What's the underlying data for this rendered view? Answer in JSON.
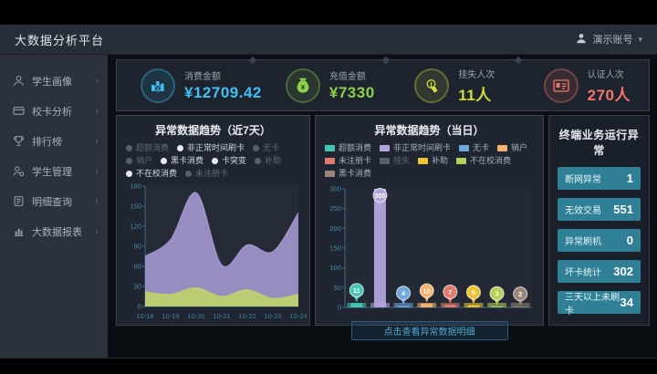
{
  "header": {
    "title": "大数据分析平台",
    "user_name": "演示账号",
    "caret": "▾"
  },
  "sidebar": {
    "items": [
      {
        "label": "学生画像",
        "icon": "student-icon"
      },
      {
        "label": "校卡分析",
        "icon": "card-icon"
      },
      {
        "label": "排行榜",
        "icon": "trophy-icon"
      },
      {
        "label": "学生管理",
        "icon": "manage-icon"
      },
      {
        "label": "明细查询",
        "icon": "search-doc-icon"
      },
      {
        "label": "大数据报表",
        "icon": "report-icon"
      }
    ]
  },
  "kpis": [
    {
      "label": "消费金额",
      "value": "¥12709.42",
      "color": "#3fc1f5",
      "icon": "coins-icon"
    },
    {
      "label": "充值金额",
      "value": "¥7330",
      "color": "#8ed04a",
      "icon": "moneybag-icon"
    },
    {
      "label": "挂失人次",
      "value": "11人",
      "color": "#d3dc3a",
      "icon": "touch-icon"
    },
    {
      "label": "认证人次",
      "value": "270人",
      "color": "#f2766d",
      "icon": "idcard-icon"
    }
  ],
  "left_chart": {
    "title": "异常数据趋势（近7天）",
    "legend": [
      {
        "label": "超额消费",
        "active": false
      },
      {
        "label": "非正常时间刷卡",
        "active": true
      },
      {
        "label": "无卡",
        "active": false
      },
      {
        "label": "销户",
        "active": false
      },
      {
        "label": "黑卡消费",
        "active": true
      },
      {
        "label": "卡突变",
        "active": true
      },
      {
        "label": "补助",
        "active": false
      },
      {
        "label": "不在校消费",
        "active": true
      },
      {
        "label": "未注册卡",
        "active": false
      }
    ]
  },
  "right_chart": {
    "title": "异常数据趋势（当日）",
    "footer_link": "点击查看异常数据明细",
    "legend": [
      {
        "label": "超额消费",
        "color": "#45c5b5",
        "active": true
      },
      {
        "label": "非正常时间刷卡",
        "color": "#b3a5dc",
        "active": true
      },
      {
        "label": "无卡",
        "color": "#6fa8dc",
        "active": true
      },
      {
        "label": "销户",
        "color": "#f6b26b",
        "active": true
      },
      {
        "label": "未注册卡",
        "color": "#e07a6d",
        "active": true
      },
      {
        "label": "挂失",
        "color": "#6f7984",
        "active": false
      },
      {
        "label": "补助",
        "color": "#f1c232",
        "active": true
      },
      {
        "label": "不在校消费",
        "color": "#b6d157",
        "active": true
      },
      {
        "label": "黑卡消费",
        "color": "#9a8577",
        "active": true
      }
    ]
  },
  "stats": {
    "title": "终端业务运行异常",
    "items": [
      {
        "label": "断网异常",
        "value": "1"
      },
      {
        "label": "无效交易",
        "value": "551"
      },
      {
        "label": "异常刷机",
        "value": "0"
      },
      {
        "label": "坏卡统计",
        "value": "302"
      },
      {
        "label": "三天以上未刷卡",
        "value": "34"
      }
    ]
  },
  "chart_data": [
    {
      "type": "area",
      "title": "异常数据趋势（近7天）",
      "x": [
        "10-18",
        "10-19",
        "10-20",
        "10-21",
        "10-22",
        "10-23",
        "10-24"
      ],
      "series": [
        {
          "name": "非正常时间刷卡",
          "color": "#a79bd5",
          "values": [
            75,
            100,
            170,
            62,
            92,
            82,
            140
          ]
        },
        {
          "name": "不在校消费",
          "color": "#bed16c",
          "values": [
            22,
            18,
            28,
            15,
            25,
            12,
            18
          ]
        }
      ],
      "ylim": [
        0,
        180
      ],
      "ytick_step": 30,
      "grid": false,
      "legend_position": "top"
    },
    {
      "type": "bar",
      "title": "异常数据趋势（当日）",
      "categories": [
        "超额消费",
        "非正常时间刷卡",
        "无卡",
        "销户",
        "未注册卡",
        "补助",
        "不在校消费",
        "黑卡消费"
      ],
      "values": [
        11,
        305,
        4,
        10,
        7,
        6,
        3,
        2
      ],
      "colors": [
        "#45c5b5",
        "#b3a5dc",
        "#6fa8dc",
        "#f6b26b",
        "#e07a6d",
        "#f1c232",
        "#b6d157",
        "#9a8577"
      ],
      "ylim": [
        0,
        300
      ],
      "ytick_step": 50,
      "grid": false
    }
  ]
}
